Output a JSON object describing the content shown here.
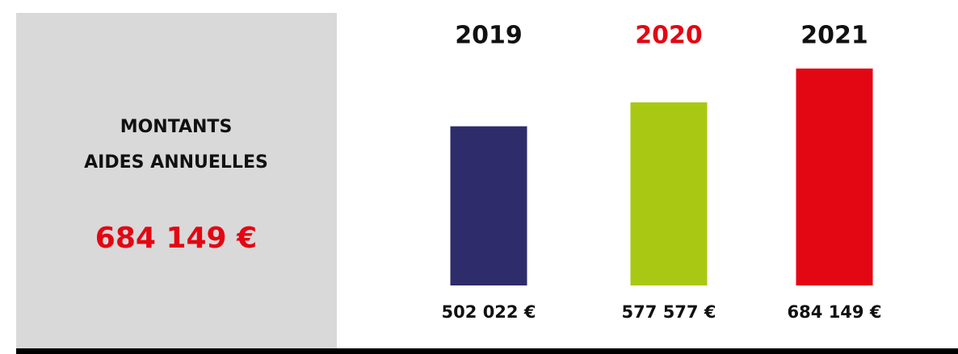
{
  "summary": {
    "title": [
      "MONTANTS",
      "AIDES ANNUELLES"
    ],
    "total": "684 149 €"
  },
  "chart_data": {
    "type": "bar",
    "categories": [
      "2019",
      "2020",
      "2021"
    ],
    "category_colors": [
      "#111111",
      "#e30613",
      "#111111"
    ],
    "values": [
      502022,
      577577,
      684149
    ],
    "value_labels": [
      "502 022 €",
      "577 577 €",
      "684 149 €"
    ],
    "colors": [
      "#2e2c6a",
      "#a9c813",
      "#e30613"
    ]
  }
}
